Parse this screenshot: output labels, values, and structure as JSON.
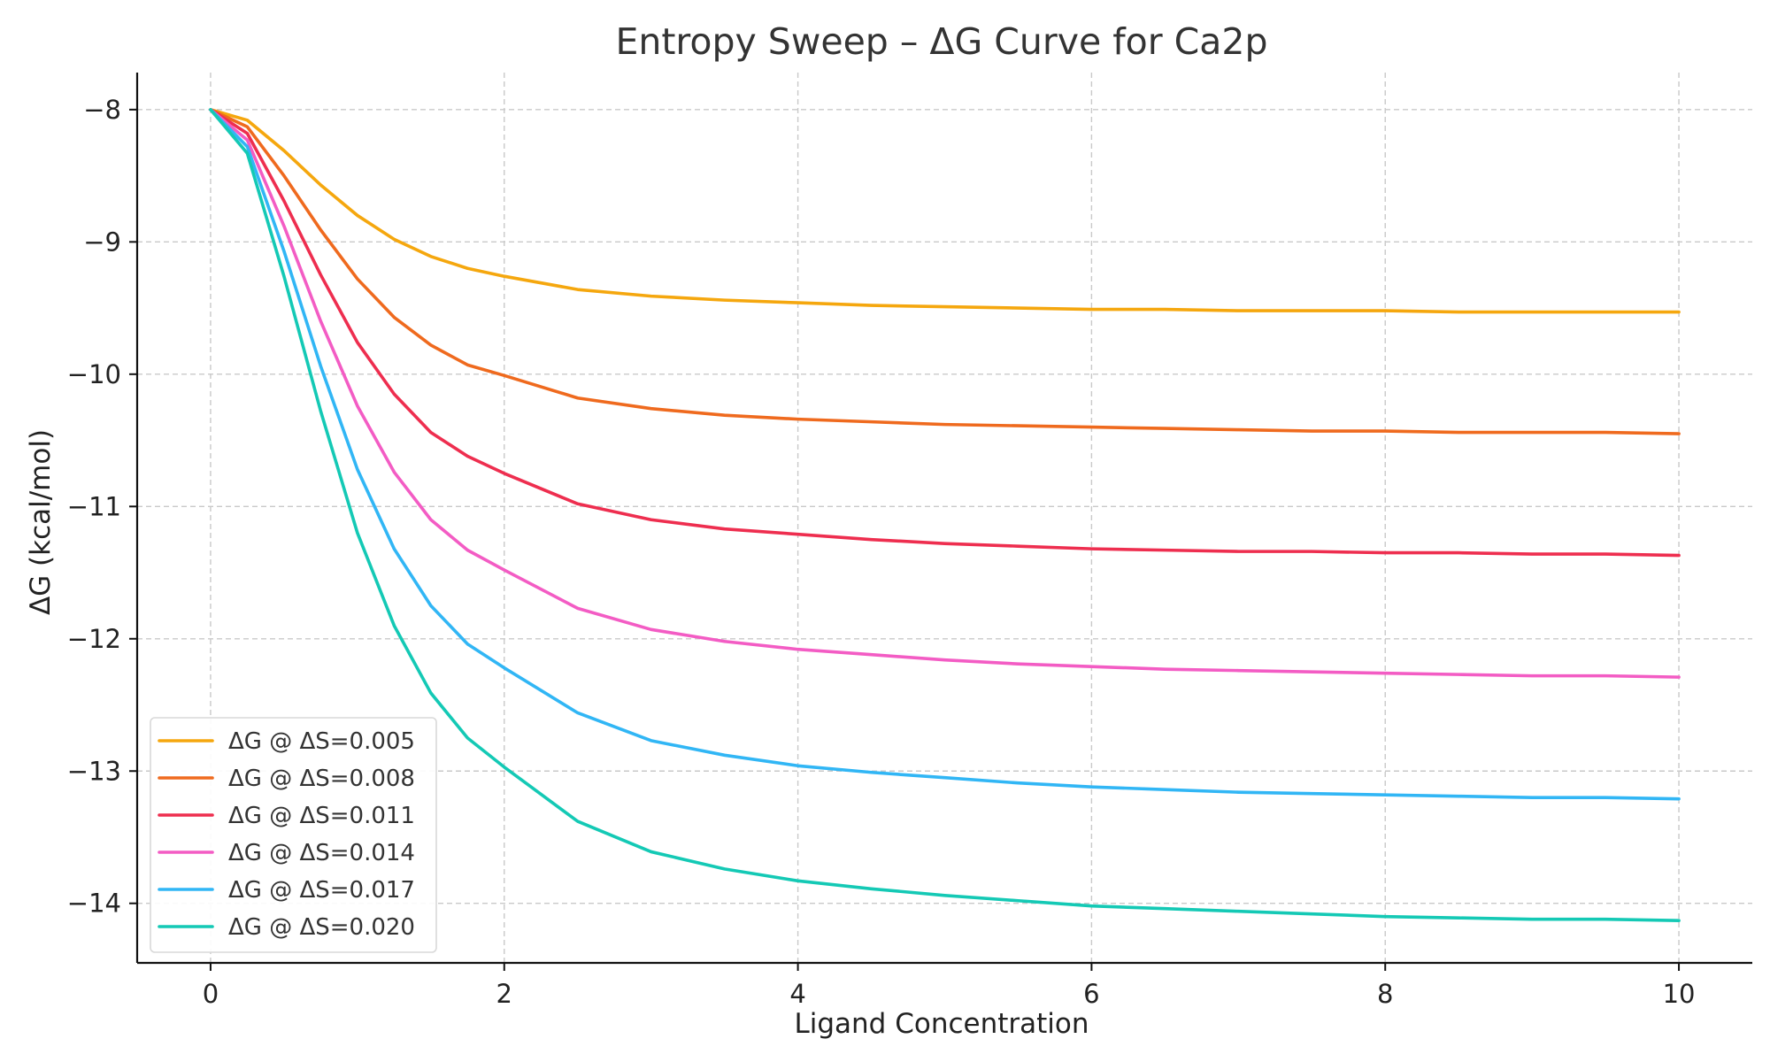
{
  "chart_data": {
    "type": "line",
    "title": "Entropy Sweep – ΔG Curve for Ca2p",
    "xlabel": "Ligand Concentration",
    "ylabel": "ΔG (kcal/mol)",
    "xlim": [
      -0.5,
      10.5
    ],
    "ylim": [
      -14.45,
      -7.72
    ],
    "x_ticks": [
      0,
      2,
      4,
      6,
      8,
      10
    ],
    "x_tick_labels": [
      "0",
      "2",
      "4",
      "6",
      "8",
      "10"
    ],
    "y_ticks": [
      -8,
      -9,
      -10,
      -11,
      -12,
      -13,
      -14
    ],
    "y_tick_labels": [
      "−8",
      "−9",
      "−10",
      "−11",
      "−12",
      "−13",
      "−14"
    ],
    "grid": true,
    "legend_position": "lower-left",
    "x": [
      0,
      0.25,
      0.5,
      0.75,
      1,
      1.25,
      1.5,
      1.75,
      2,
      2.5,
      3,
      3.5,
      4,
      4.5,
      5,
      5.5,
      6,
      6.5,
      7,
      7.5,
      8,
      8.5,
      9,
      9.5,
      10
    ],
    "series": [
      {
        "name": "ΔG @ ΔS=0.005",
        "color": "#f5a70e",
        "values": [
          -8.0,
          -8.08,
          -8.31,
          -8.57,
          -8.8,
          -8.98,
          -9.11,
          -9.2,
          -9.26,
          -9.36,
          -9.41,
          -9.44,
          -9.46,
          -9.48,
          -9.49,
          -9.5,
          -9.51,
          -9.51,
          -9.52,
          -9.52,
          -9.52,
          -9.53,
          -9.53,
          -9.53,
          -9.53
        ]
      },
      {
        "name": "ΔG @ ΔS=0.008",
        "color": "#ef6a1e",
        "values": [
          -8.0,
          -8.13,
          -8.5,
          -8.91,
          -9.28,
          -9.57,
          -9.78,
          -9.93,
          -10.01,
          -10.18,
          -10.26,
          -10.31,
          -10.34,
          -10.36,
          -10.38,
          -10.39,
          -10.4,
          -10.41,
          -10.42,
          -10.43,
          -10.43,
          -10.44,
          -10.44,
          -10.44,
          -10.45
        ]
      },
      {
        "name": "ΔG @ ΔS=0.011",
        "color": "#ee2e4f",
        "values": [
          -8.0,
          -8.18,
          -8.69,
          -9.25,
          -9.76,
          -10.15,
          -10.44,
          -10.62,
          -10.75,
          -10.98,
          -11.1,
          -11.17,
          -11.21,
          -11.25,
          -11.28,
          -11.3,
          -11.32,
          -11.33,
          -11.34,
          -11.34,
          -11.35,
          -11.35,
          -11.36,
          -11.36,
          -11.37
        ]
      },
      {
        "name": "ΔG @ ΔS=0.014",
        "color": "#f35cc4",
        "values": [
          -8.0,
          -8.23,
          -8.88,
          -9.6,
          -10.24,
          -10.74,
          -11.1,
          -11.33,
          -11.48,
          -11.77,
          -11.93,
          -12.02,
          -12.08,
          -12.12,
          -12.16,
          -12.19,
          -12.21,
          -12.23,
          -12.24,
          -12.25,
          -12.26,
          -12.27,
          -12.28,
          -12.28,
          -12.29
        ]
      },
      {
        "name": "ΔG @ ΔS=0.017",
        "color": "#31b6f5",
        "values": [
          -8.0,
          -8.28,
          -9.07,
          -9.94,
          -10.72,
          -11.32,
          -11.75,
          -12.04,
          -12.22,
          -12.56,
          -12.77,
          -12.88,
          -12.96,
          -13.01,
          -13.05,
          -13.09,
          -13.12,
          -13.14,
          -13.16,
          -13.17,
          -13.18,
          -13.19,
          -13.2,
          -13.2,
          -13.21
        ]
      },
      {
        "name": "ΔG @ ΔS=0.020",
        "color": "#14c9b5",
        "values": [
          -8.0,
          -8.33,
          -9.26,
          -10.28,
          -11.2,
          -11.9,
          -12.41,
          -12.75,
          -12.97,
          -13.38,
          -13.61,
          -13.74,
          -13.83,
          -13.89,
          -13.94,
          -13.98,
          -14.02,
          -14.04,
          -14.06,
          -14.08,
          -14.1,
          -14.11,
          -14.12,
          -14.12,
          -14.13
        ]
      }
    ]
  }
}
